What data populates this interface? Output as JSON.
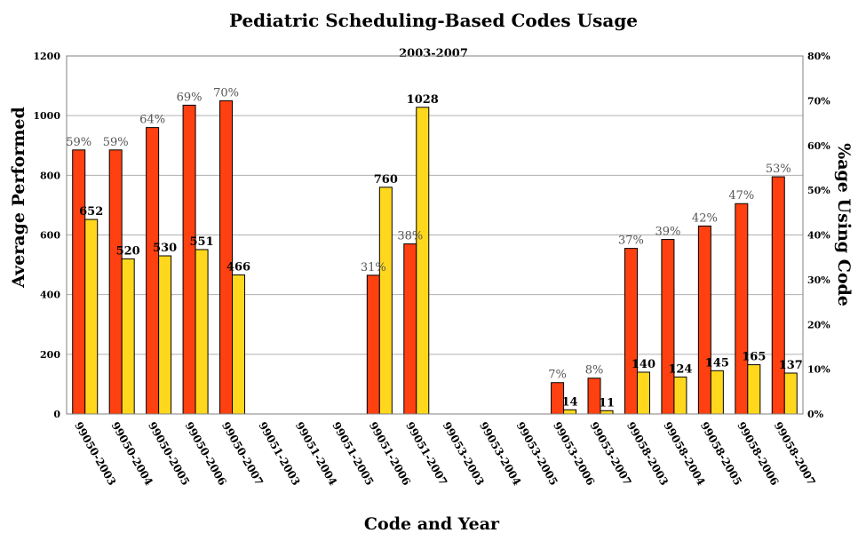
{
  "chart_data": {
    "type": "bar",
    "title": "Pediatric Scheduling-Based Codes Usage",
    "subtitle": "2003-2007",
    "xlabel": "Code and Year",
    "ylabel": "Average Performed",
    "y2label": "%age Using Code",
    "ylim": [
      0,
      1200
    ],
    "yticks": [
      "0",
      "200",
      "400",
      "600",
      "800",
      "1000",
      "1200"
    ],
    "y2lim": [
      0,
      80
    ],
    "y2ticks": [
      "0%",
      "10%",
      "20%",
      "30%",
      "40%",
      "50%",
      "60%",
      "70%",
      "80%"
    ],
    "grid": true,
    "categories": [
      "99050-2003",
      "99050-2004",
      "99050-2005",
      "99050-2006",
      "99050-2007",
      "99051-2003",
      "99051-2004",
      "99051-2005",
      "99051-2006",
      "99051-2007",
      "99053-2003",
      "99053-2004",
      "99053-2005",
      "99053-2006",
      "99053-2007",
      "99058-2003",
      "99058-2004",
      "99058-2005",
      "99058-2006",
      "99058-2007"
    ],
    "series": [
      {
        "axis": "right",
        "color": "#ff4010",
        "values": [
          59,
          59,
          64,
          69,
          70,
          null,
          null,
          null,
          31,
          38,
          null,
          null,
          null,
          7,
          8,
          37,
          39,
          42,
          47,
          53
        ],
        "labels": [
          "59%",
          "59%",
          "64%",
          "69%",
          "70%",
          "",
          "",
          "",
          "31%",
          "38%",
          "",
          "",
          "",
          "7%",
          "8%",
          "37%",
          "39%",
          "42%",
          "47%",
          "53%"
        ]
      },
      {
        "axis": "left",
        "color": "#ffd81e",
        "values": [
          652,
          520,
          530,
          551,
          466,
          null,
          null,
          null,
          760,
          1028,
          null,
          null,
          null,
          14,
          11,
          140,
          124,
          145,
          165,
          137
        ],
        "labels": [
          "652",
          "520",
          "530",
          "551",
          "466",
          "",
          "",
          "",
          "760",
          "1028",
          "",
          "",
          "",
          "14",
          "11",
          "140",
          "124",
          "145",
          "165",
          "137"
        ]
      }
    ]
  }
}
